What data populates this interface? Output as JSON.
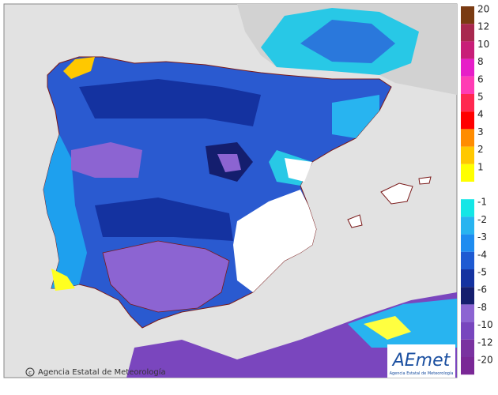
{
  "copyright": "Agencia Estatal de Meteorología",
  "logo": {
    "name": "AEmet",
    "subtitle": "Agencia Estatal de Meteorología"
  },
  "legend": [
    {
      "label": "20",
      "color": "#7a3b12"
    },
    {
      "label": "12",
      "color": "#a8284e"
    },
    {
      "label": "10",
      "color": "#c81e78"
    },
    {
      "label": "8",
      "color": "#e61ec8"
    },
    {
      "label": "6",
      "color": "#ff3cb4"
    },
    {
      "label": "5",
      "color": "#ff2850"
    },
    {
      "label": "4",
      "color": "#ff0000"
    },
    {
      "label": "3",
      "color": "#ff8c00"
    },
    {
      "label": "2",
      "color": "#ffc800"
    },
    {
      "label": "1",
      "color": "#ffff00"
    },
    {
      "label": "-1",
      "color": "#14e6e6"
    },
    {
      "label": "-2",
      "color": "#28b4f0"
    },
    {
      "label": "-3",
      "color": "#1e8cf0"
    },
    {
      "label": "-4",
      "color": "#1e5ad2"
    },
    {
      "label": "-5",
      "color": "#1432a0"
    },
    {
      "label": "-6",
      "color": "#141e6e"
    },
    {
      "label": "-8",
      "color": "#8c64d2"
    },
    {
      "label": "-10",
      "color": "#7846be"
    },
    {
      "label": "-12",
      "color": "#7a32a0"
    },
    {
      "label": "-20",
      "color": "#7a2896"
    }
  ]
}
